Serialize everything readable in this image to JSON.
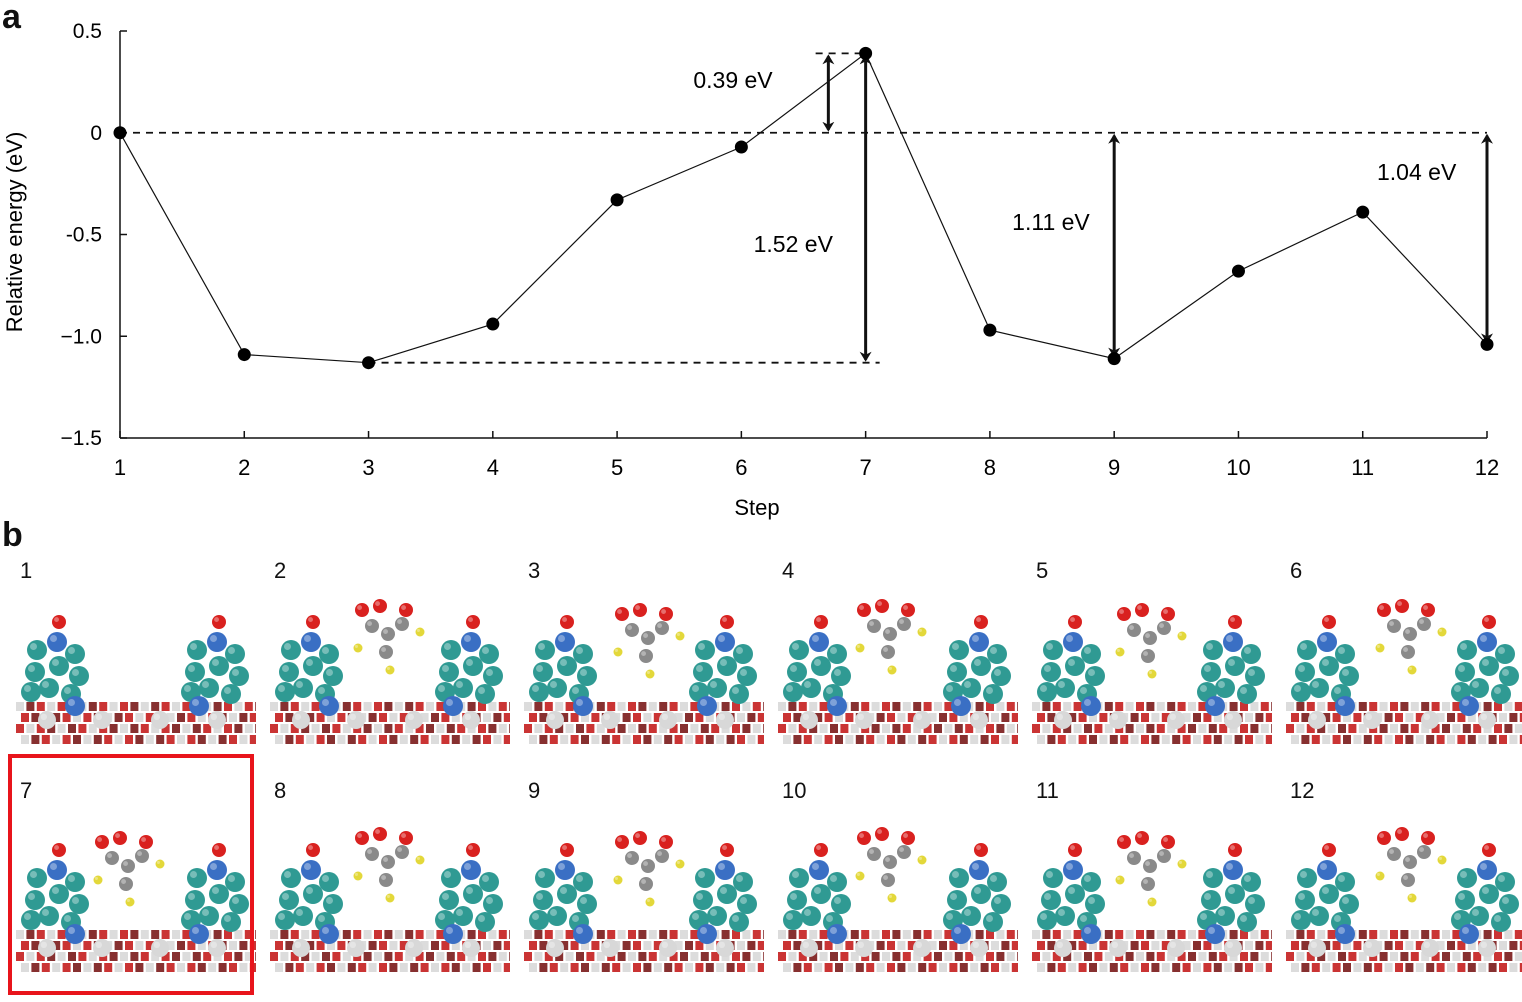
{
  "panels": {
    "a": "a",
    "b": "b"
  },
  "chart_data": {
    "type": "line",
    "xlabel": "Step",
    "ylabel": "Relative energy (eV)",
    "x": [
      1,
      2,
      3,
      4,
      5,
      6,
      7,
      8,
      9,
      10,
      11,
      12
    ],
    "values": [
      0,
      -1.09,
      -1.13,
      -0.94,
      -0.33,
      -0.07,
      0.39,
      -0.97,
      -1.11,
      -0.68,
      -0.39,
      -1.04
    ],
    "xlim": [
      1,
      12
    ],
    "ylim": [
      -1.5,
      0.5
    ],
    "yticks": [
      0.5,
      0,
      -0.5,
      -1.0,
      -1.5
    ],
    "ytick_labels": [
      "0.5",
      "0",
      "-0.5",
      "−1.0",
      "−1.5"
    ],
    "xtick_labels": [
      "1",
      "2",
      "3",
      "4",
      "5",
      "6",
      "7",
      "8",
      "9",
      "10",
      "11",
      "12"
    ],
    "grid": false,
    "reference_line": {
      "y": 0,
      "style": "dashed"
    },
    "annotations": [
      {
        "label": "0.39 eV",
        "x": 6.7,
        "from": 0,
        "to": 0.39
      },
      {
        "label": "1.52 eV",
        "x": 7,
        "from": -1.13,
        "to": 0.39
      },
      {
        "label": "1.11 eV",
        "x": 9,
        "from": -1.11,
        "to": 0
      },
      {
        "label": "1.04 eV",
        "x": 12,
        "from": -1.04,
        "to": 0
      }
    ]
  },
  "structures": {
    "labels": [
      "1",
      "2",
      "3",
      "4",
      "5",
      "6",
      "7",
      "8",
      "9",
      "10",
      "11",
      "12"
    ],
    "highlighted": "7",
    "highlight_color": "#e8141b",
    "colors": {
      "support_dark": "#7a1a1a",
      "support_red": "#c41e1e",
      "support_white": "#d8d8d8",
      "cluster_teal": "#2f9a93",
      "cluster_blue": "#3a6fc4",
      "oxygen": "#d9211f",
      "carbon": "#8a8a8a",
      "hydrogen": "#e3d83a"
    }
  }
}
